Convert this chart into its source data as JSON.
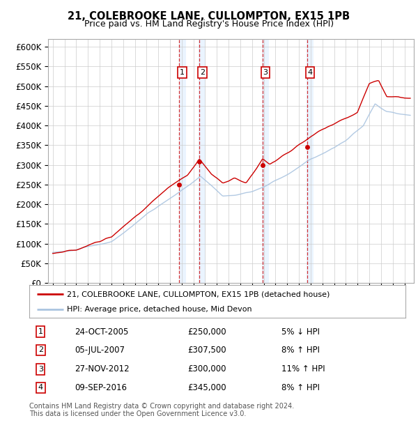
{
  "title_line1": "21, COLEBROOKE LANE, CULLOMPTON, EX15 1PB",
  "title_line2": "Price paid vs. HM Land Registry's House Price Index (HPI)",
  "ylim": [
    0,
    620000
  ],
  "yticks": [
    0,
    50000,
    100000,
    150000,
    200000,
    250000,
    300000,
    350000,
    400000,
    450000,
    500000,
    550000,
    600000
  ],
  "ytick_labels": [
    "£0",
    "£50K",
    "£100K",
    "£150K",
    "£200K",
    "£250K",
    "£300K",
    "£350K",
    "£400K",
    "£450K",
    "£500K",
    "£550K",
    "£600K"
  ],
  "hpi_color": "#aac4e0",
  "price_color": "#cc0000",
  "shade_color": "#ddeeff",
  "legend_label_price": "21, COLEBROOKE LANE, CULLOMPTON, EX15 1PB (detached house)",
  "legend_label_hpi": "HPI: Average price, detached house, Mid Devon",
  "sale_points": [
    {
      "num": 1,
      "date": "24-OCT-2005",
      "price": 250000,
      "year": 2005.8,
      "pct": "5%",
      "dir": "↓"
    },
    {
      "num": 2,
      "date": "05-JUL-2007",
      "price": 307500,
      "year": 2007.5,
      "pct": "8%",
      "dir": "↑"
    },
    {
      "num": 3,
      "date": "27-NOV-2012",
      "price": 300000,
      "year": 2012.9,
      "pct": "11%",
      "dir": "↑"
    },
    {
      "num": 4,
      "date": "09-SEP-2016",
      "price": 345000,
      "year": 2016.7,
      "pct": "8%",
      "dir": "↑"
    }
  ],
  "footer_line1": "Contains HM Land Registry data © Crown copyright and database right 2024.",
  "footer_line2": "This data is licensed under the Open Government Licence v3.0."
}
